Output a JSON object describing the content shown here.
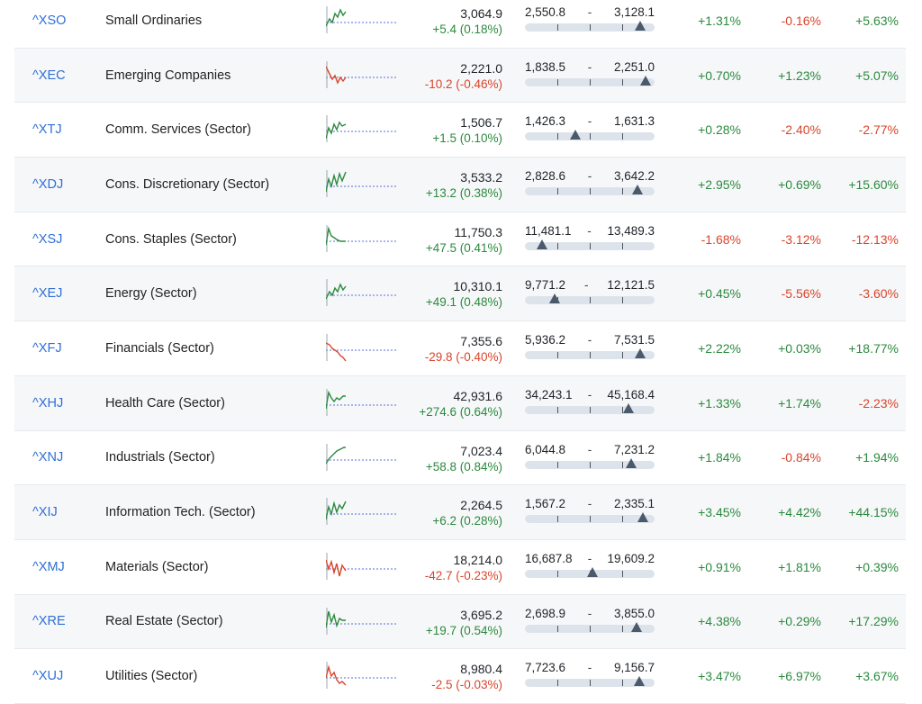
{
  "colors": {
    "positive": "#2b8a3e",
    "negative": "#d9452b",
    "link": "#2f6fd6"
  },
  "rows": [
    {
      "symbol": "^XSO",
      "name": "Small Ordinaries",
      "price": "3,064.9",
      "change": "+5.4 (0.18%)",
      "range_low": "2,550.8",
      "range_high": "3,128.1",
      "range_position": 0.89,
      "p1": "+1.31%",
      "p2": "-0.16%",
      "p3": "+5.63%",
      "trend": "up"
    },
    {
      "symbol": "^XEC",
      "name": "Emerging Companies",
      "price": "2,221.0",
      "change": "-10.2 (-0.46%)",
      "range_low": "1,838.5",
      "range_high": "2,251.0",
      "range_position": 0.93,
      "p1": "+0.70%",
      "p2": "+1.23%",
      "p3": "+5.07%",
      "trend": "down"
    },
    {
      "symbol": "^XTJ",
      "name": "Comm. Services (Sector)",
      "price": "1,506.7",
      "change": "+1.5 (0.10%)",
      "range_low": "1,426.3",
      "range_high": "1,631.3",
      "range_position": 0.39,
      "p1": "+0.28%",
      "p2": "-2.40%",
      "p3": "-2.77%",
      "trend": "up"
    },
    {
      "symbol": "^XDJ",
      "name": "Cons. Discretionary (Sector)",
      "price": "3,533.2",
      "change": "+13.2 (0.38%)",
      "range_low": "2,828.6",
      "range_high": "3,642.2",
      "range_position": 0.87,
      "p1": "+2.95%",
      "p2": "+0.69%",
      "p3": "+15.60%",
      "trend": "up"
    },
    {
      "symbol": "^XSJ",
      "name": "Cons. Staples (Sector)",
      "price": "11,750.3",
      "change": "+47.5 (0.41%)",
      "range_low": "11,481.1",
      "range_high": "13,489.3",
      "range_position": 0.13,
      "p1": "-1.68%",
      "p2": "-3.12%",
      "p3": "-12.13%",
      "trend": "up"
    },
    {
      "symbol": "^XEJ",
      "name": "Energy (Sector)",
      "price": "10,310.1",
      "change": "+49.1 (0.48%)",
      "range_low": "9,771.2",
      "range_high": "12,121.5",
      "range_position": 0.23,
      "p1": "+0.45%",
      "p2": "-5.56%",
      "p3": "-3.60%",
      "trend": "up"
    },
    {
      "symbol": "^XFJ",
      "name": "Financials (Sector)",
      "price": "7,355.6",
      "change": "-29.8 (-0.40%)",
      "range_low": "5,936.2",
      "range_high": "7,531.5",
      "range_position": 0.89,
      "p1": "+2.22%",
      "p2": "+0.03%",
      "p3": "+18.77%",
      "trend": "down"
    },
    {
      "symbol": "^XHJ",
      "name": "Health Care (Sector)",
      "price": "42,931.6",
      "change": "+274.6 (0.64%)",
      "range_low": "34,243.1",
      "range_high": "45,168.4",
      "range_position": 0.8,
      "p1": "+1.33%",
      "p2": "+1.74%",
      "p3": "-2.23%",
      "trend": "up"
    },
    {
      "symbol": "^XNJ",
      "name": "Industrials (Sector)",
      "price": "7,023.4",
      "change": "+58.8 (0.84%)",
      "range_low": "6,044.8",
      "range_high": "7,231.2",
      "range_position": 0.82,
      "p1": "+1.84%",
      "p2": "-0.84%",
      "p3": "+1.94%",
      "trend": "up"
    },
    {
      "symbol": "^XIJ",
      "name": "Information Tech. (Sector)",
      "price": "2,264.5",
      "change": "+6.2 (0.28%)",
      "range_low": "1,567.2",
      "range_high": "2,335.1",
      "range_position": 0.91,
      "p1": "+3.45%",
      "p2": "+4.42%",
      "p3": "+44.15%",
      "trend": "up"
    },
    {
      "symbol": "^XMJ",
      "name": "Materials (Sector)",
      "price": "18,214.0",
      "change": "-42.7 (-0.23%)",
      "range_low": "16,687.8",
      "range_high": "19,609.2",
      "range_position": 0.52,
      "p1": "+0.91%",
      "p2": "+1.81%",
      "p3": "+0.39%",
      "trend": "down"
    },
    {
      "symbol": "^XRE",
      "name": "Real Estate (Sector)",
      "price": "3,695.2",
      "change": "+19.7 (0.54%)",
      "range_low": "2,698.9",
      "range_high": "3,855.0",
      "range_position": 0.86,
      "p1": "+4.38%",
      "p2": "+0.29%",
      "p3": "+17.29%",
      "trend": "up"
    },
    {
      "symbol": "^XUJ",
      "name": "Utilities (Sector)",
      "price": "8,980.4",
      "change": "-2.5 (-0.03%)",
      "range_low": "7,723.6",
      "range_high": "9,156.7",
      "range_position": 0.88,
      "p1": "+3.47%",
      "p2": "+6.97%",
      "p3": "+3.67%",
      "trend": "down"
    }
  ]
}
